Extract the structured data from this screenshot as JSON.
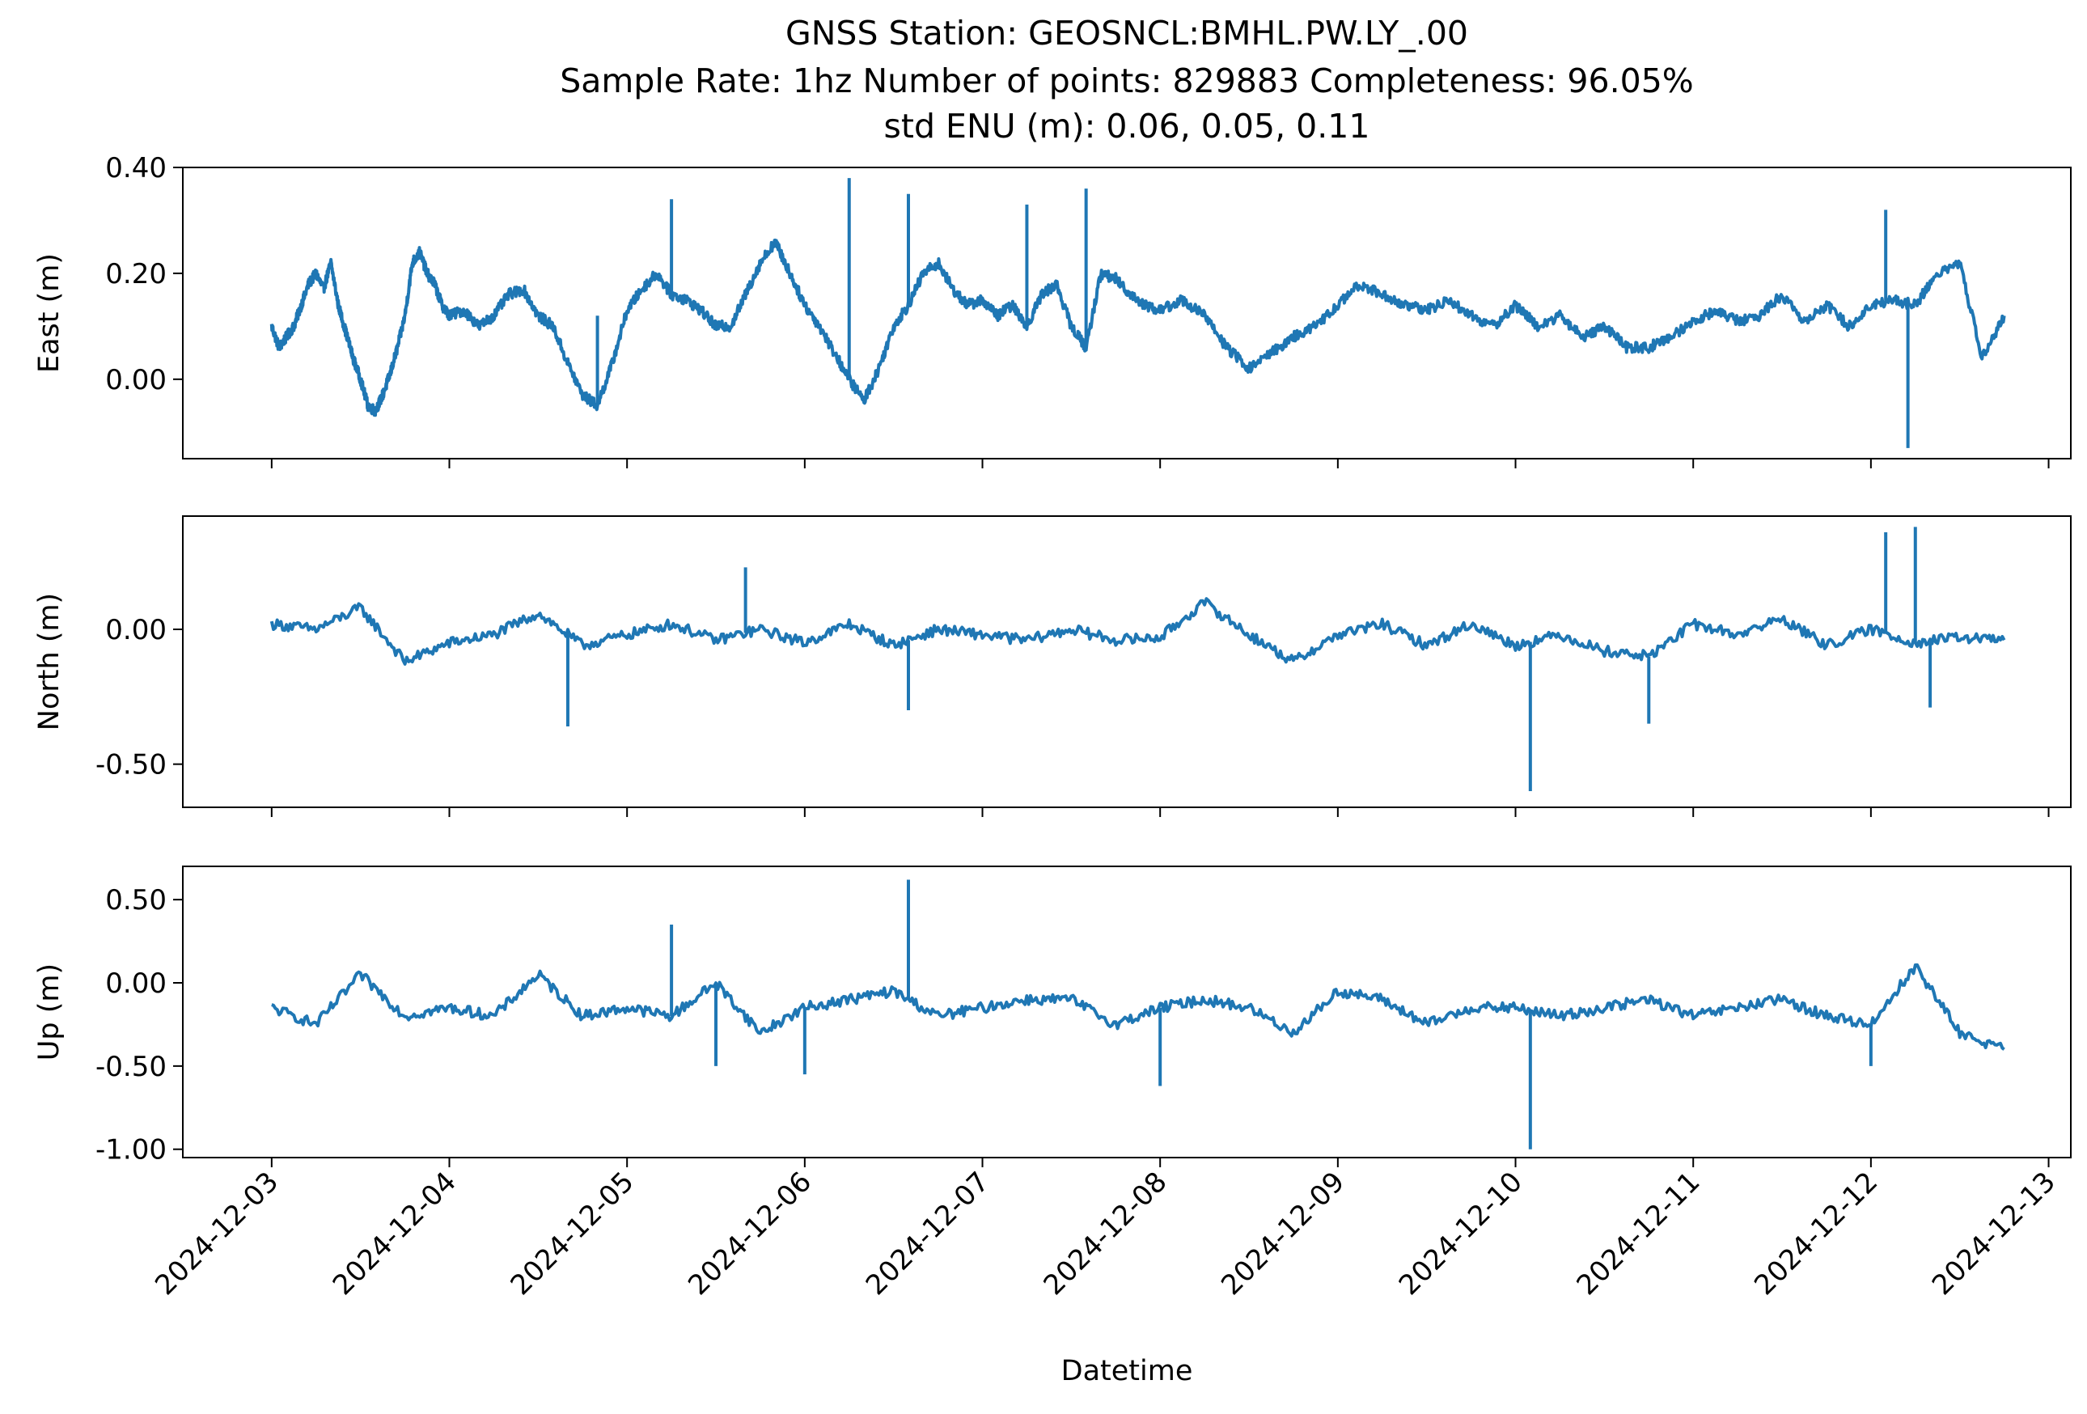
{
  "figure": {
    "title_lines": [
      "GNSS Station: GEOSNCL:BMHL.PW.LY_.00",
      "Sample Rate: 1hz   Number of points: 829883    Completeness:  96.05%",
      "std ENU (m):  0.06, 0.05, 0.11"
    ],
    "xlabel": "Datetime",
    "line_color": "#1f77b4"
  },
  "chart_data": [
    {
      "type": "line",
      "ylabel": "East (m)",
      "xlim": [
        "2024-12-02 12:00",
        "2024-12-13 03:00"
      ],
      "ylim": [
        -0.15,
        0.4
      ],
      "yticks": [
        0.0,
        0.2,
        0.4
      ],
      "yticklabels": [
        "0.00",
        "0.20",
        "0.40"
      ],
      "xticks": [
        "2024-12-03",
        "2024-12-04",
        "2024-12-05",
        "2024-12-06",
        "2024-12-07",
        "2024-12-08",
        "2024-12-09",
        "2024-12-10",
        "2024-12-11",
        "2024-12-12",
        "2024-12-13"
      ],
      "xticklabels_visible": false,
      "series": [
        {
          "x": [
            "2024-12-03 00:00",
            "2024-12-03 01:00",
            "2024-12-03 02:00",
            "2024-12-03 03:00",
            "2024-12-03 04:00",
            "2024-12-03 05:00",
            "2024-12-03 06:00",
            "2024-12-03 07:00",
            "2024-12-03 08:00",
            "2024-12-03 09:00",
            "2024-12-03 10:00",
            "2024-12-03 11:00",
            "2024-12-03 12:00",
            "2024-12-03 13:00",
            "2024-12-03 14:00",
            "2024-12-03 15:00",
            "2024-12-03 16:00",
            "2024-12-03 17:00",
            "2024-12-03 18:00",
            "2024-12-03 19:00",
            "2024-12-03 20:00",
            "2024-12-03 21:00",
            "2024-12-03 22:00",
            "2024-12-03 23:00",
            "2024-12-04 00:00",
            "2024-12-04 02:00",
            "2024-12-04 04:00",
            "2024-12-04 06:00",
            "2024-12-04 08:00",
            "2024-12-04 10:00",
            "2024-12-04 12:00",
            "2024-12-04 14:00",
            "2024-12-04 16:00",
            "2024-12-04 18:00",
            "2024-12-04 20:00",
            "2024-12-04 22:00",
            "2024-12-05 00:00",
            "2024-12-05 02:00",
            "2024-12-05 04:00",
            "2024-12-05 06:00",
            "2024-12-05 08:00",
            "2024-12-05 10:00",
            "2024-12-05 12:00",
            "2024-12-05 14:00",
            "2024-12-05 16:00",
            "2024-12-05 18:00",
            "2024-12-05 20:00",
            "2024-12-05 22:00",
            "2024-12-06 00:00",
            "2024-12-06 02:00",
            "2024-12-06 04:00",
            "2024-12-06 06:00",
            "2024-12-06 08:00",
            "2024-12-06 10:00",
            "2024-12-06 12:00",
            "2024-12-06 14:00",
            "2024-12-06 16:00",
            "2024-12-06 18:00",
            "2024-12-06 20:00",
            "2024-12-06 22:00",
            "2024-12-07 00:00",
            "2024-12-07 02:00",
            "2024-12-07 04:00",
            "2024-12-07 06:00",
            "2024-12-07 08:00",
            "2024-12-07 10:00",
            "2024-12-07 12:00",
            "2024-12-07 14:00",
            "2024-12-07 16:00",
            "2024-12-07 18:00",
            "2024-12-07 20:00",
            "2024-12-07 22:00",
            "2024-12-08 00:00",
            "2024-12-08 03:00",
            "2024-12-08 06:00",
            "2024-12-08 09:00",
            "2024-12-08 12:00",
            "2024-12-08 15:00",
            "2024-12-08 18:00",
            "2024-12-08 21:00",
            "2024-12-09 00:00",
            "2024-12-09 03:00",
            "2024-12-09 06:00",
            "2024-12-09 09:00",
            "2024-12-09 12:00",
            "2024-12-09 15:00",
            "2024-12-09 18:00",
            "2024-12-09 21:00",
            "2024-12-10 00:00",
            "2024-12-10 03:00",
            "2024-12-10 06:00",
            "2024-12-10 09:00",
            "2024-12-10 12:00",
            "2024-12-10 15:00",
            "2024-12-10 18:00",
            "2024-12-10 21:00",
            "2024-12-11 00:00",
            "2024-12-11 03:00",
            "2024-12-11 06:00",
            "2024-12-11 09:00",
            "2024-12-11 12:00",
            "2024-12-11 15:00",
            "2024-12-11 18:00",
            "2024-12-11 21:00",
            "2024-12-12 00:00",
            "2024-12-12 03:00",
            "2024-12-12 06:00",
            "2024-12-12 09:00",
            "2024-12-12 12:00",
            "2024-12-12 15:00",
            "2024-12-12 18:00"
          ],
          "y": [
            0.1,
            0.06,
            0.08,
            0.1,
            0.14,
            0.18,
            0.2,
            0.17,
            0.22,
            0.14,
            0.09,
            0.04,
            0.0,
            -0.05,
            -0.06,
            -0.03,
            0.01,
            0.06,
            0.12,
            0.22,
            0.24,
            0.2,
            0.18,
            0.14,
            0.12,
            0.13,
            0.1,
            0.12,
            0.16,
            0.17,
            0.12,
            0.1,
            0.03,
            -0.03,
            -0.05,
            0.03,
            0.13,
            0.17,
            0.2,
            0.16,
            0.15,
            0.13,
            0.1,
            0.1,
            0.16,
            0.22,
            0.26,
            0.2,
            0.14,
            0.1,
            0.05,
            0.0,
            -0.04,
            0.02,
            0.1,
            0.14,
            0.2,
            0.22,
            0.17,
            0.14,
            0.15,
            0.12,
            0.14,
            0.1,
            0.16,
            0.18,
            0.1,
            0.06,
            0.2,
            0.19,
            0.16,
            0.14,
            0.13,
            0.15,
            0.12,
            0.06,
            0.02,
            0.05,
            0.08,
            0.1,
            0.14,
            0.18,
            0.16,
            0.14,
            0.13,
            0.15,
            0.12,
            0.1,
            0.14,
            0.1,
            0.12,
            0.08,
            0.1,
            0.06,
            0.06,
            0.08,
            0.11,
            0.13,
            0.11,
            0.12,
            0.16,
            0.11,
            0.14,
            0.1,
            0.14,
            0.15,
            0.14,
            0.2,
            0.22,
            0.04,
            0.12
          ],
          "spikes": [
            [
              "2024-12-04 20:00",
              0.12
            ],
            [
              "2024-12-05 06:00",
              0.34
            ],
            [
              "2024-12-06 06:00",
              0.38
            ],
            [
              "2024-12-06 14:00",
              0.35
            ],
            [
              "2024-12-07 06:00",
              0.33
            ],
            [
              "2024-12-07 14:00",
              0.36
            ],
            [
              "2024-12-12 02:00",
              0.32
            ],
            [
              "2024-12-12 05:00",
              -0.13
            ]
          ]
        }
      ]
    },
    {
      "type": "line",
      "ylabel": "North (m)",
      "xlim": [
        "2024-12-02 12:00",
        "2024-12-13 03:00"
      ],
      "ylim": [
        -0.66,
        0.42
      ],
      "yticks": [
        0.0,
        -0.5
      ],
      "yticklabels": [
        "0.00",
        "-0.50"
      ],
      "xticks": [
        "2024-12-03",
        "2024-12-04",
        "2024-12-05",
        "2024-12-06",
        "2024-12-07",
        "2024-12-08",
        "2024-12-09",
        "2024-12-10",
        "2024-12-11",
        "2024-12-12",
        "2024-12-13"
      ],
      "xticklabels_visible": false,
      "series": [
        {
          "x": [
            "2024-12-03 00:00",
            "2024-12-03 06:00",
            "2024-12-03 12:00",
            "2024-12-03 18:00",
            "2024-12-04 00:00",
            "2024-12-04 06:00",
            "2024-12-04 12:00",
            "2024-12-04 18:00",
            "2024-12-05 00:00",
            "2024-12-05 06:00",
            "2024-12-05 12:00",
            "2024-12-05 18:00",
            "2024-12-06 00:00",
            "2024-12-06 06:00",
            "2024-12-06 12:00",
            "2024-12-06 18:00",
            "2024-12-07 00:00",
            "2024-12-07 06:00",
            "2024-12-07 12:00",
            "2024-12-07 18:00",
            "2024-12-08 00:00",
            "2024-12-08 06:00",
            "2024-12-08 12:00",
            "2024-12-08 18:00",
            "2024-12-09 00:00",
            "2024-12-09 06:00",
            "2024-12-09 12:00",
            "2024-12-09 18:00",
            "2024-12-10 00:00",
            "2024-12-10 06:00",
            "2024-12-10 12:00",
            "2024-12-10 18:00",
            "2024-12-11 00:00",
            "2024-12-11 06:00",
            "2024-12-11 12:00",
            "2024-12-11 18:00",
            "2024-12-12 00:00",
            "2024-12-12 06:00",
            "2024-12-12 12:00",
            "2024-12-12 18:00"
          ],
          "y": [
            0.02,
            0.0,
            0.08,
            -0.12,
            -0.05,
            -0.02,
            0.06,
            -0.06,
            -0.02,
            0.02,
            -0.04,
            0.0,
            -0.05,
            0.02,
            -0.06,
            0.0,
            -0.02,
            -0.04,
            0.0,
            -0.04,
            -0.03,
            0.1,
            -0.02,
            -0.12,
            -0.02,
            0.02,
            -0.06,
            0.02,
            -0.06,
            -0.02,
            -0.08,
            -0.1,
            0.02,
            -0.02,
            0.04,
            -0.06,
            0.0,
            -0.05,
            -0.03,
            -0.04
          ],
          "spikes": [
            [
              "2024-12-04 16:00",
              -0.36
            ],
            [
              "2024-12-05 16:00",
              0.23
            ],
            [
              "2024-12-06 14:00",
              -0.3
            ],
            [
              "2024-12-10 02:00",
              -0.6
            ],
            [
              "2024-12-10 18:00",
              -0.35
            ],
            [
              "2024-12-12 02:00",
              0.36
            ],
            [
              "2024-12-12 06:00",
              0.38
            ],
            [
              "2024-12-12 08:00",
              -0.29
            ]
          ]
        }
      ]
    },
    {
      "type": "line",
      "ylabel": "Up (m)",
      "xlim": [
        "2024-12-02 12:00",
        "2024-12-13 03:00"
      ],
      "ylim": [
        -1.05,
        0.7
      ],
      "yticks": [
        0.5,
        0.0,
        -0.5,
        -1.0
      ],
      "yticklabels": [
        "0.50",
        "0.00",
        "-0.50",
        "-1.00"
      ],
      "xticks": [
        "2024-12-03",
        "2024-12-04",
        "2024-12-05",
        "2024-12-06",
        "2024-12-07",
        "2024-12-08",
        "2024-12-09",
        "2024-12-10",
        "2024-12-11",
        "2024-12-12",
        "2024-12-13"
      ],
      "xticklabels": [
        "2024-12-03",
        "2024-12-04",
        "2024-12-05",
        "2024-12-06",
        "2024-12-07",
        "2024-12-08",
        "2024-12-09",
        "2024-12-10",
        "2024-12-11",
        "2024-12-12",
        "2024-12-13"
      ],
      "series": [
        {
          "x": [
            "2024-12-03 00:00",
            "2024-12-03 06:00",
            "2024-12-03 12:00",
            "2024-12-03 18:00",
            "2024-12-04 00:00",
            "2024-12-04 06:00",
            "2024-12-04 12:00",
            "2024-12-04 18:00",
            "2024-12-05 00:00",
            "2024-12-05 06:00",
            "2024-12-05 12:00",
            "2024-12-05 18:00",
            "2024-12-06 00:00",
            "2024-12-06 06:00",
            "2024-12-06 12:00",
            "2024-12-06 18:00",
            "2024-12-07 00:00",
            "2024-12-07 06:00",
            "2024-12-07 12:00",
            "2024-12-07 18:00",
            "2024-12-08 00:00",
            "2024-12-08 06:00",
            "2024-12-08 12:00",
            "2024-12-08 18:00",
            "2024-12-09 00:00",
            "2024-12-09 06:00",
            "2024-12-09 12:00",
            "2024-12-09 18:00",
            "2024-12-10 00:00",
            "2024-12-10 06:00",
            "2024-12-10 12:00",
            "2024-12-10 18:00",
            "2024-12-11 00:00",
            "2024-12-11 06:00",
            "2024-12-11 12:00",
            "2024-12-11 18:00",
            "2024-12-12 00:00",
            "2024-12-12 06:00",
            "2024-12-12 12:00",
            "2024-12-12 18:00"
          ],
          "y": [
            -0.15,
            -0.25,
            0.05,
            -0.2,
            -0.15,
            -0.2,
            0.05,
            -0.2,
            -0.15,
            -0.2,
            0.0,
            -0.3,
            -0.15,
            -0.1,
            -0.05,
            -0.2,
            -0.15,
            -0.1,
            -0.1,
            -0.25,
            -0.15,
            -0.1,
            -0.15,
            -0.3,
            -0.05,
            -0.1,
            -0.25,
            -0.15,
            -0.15,
            -0.2,
            -0.15,
            -0.1,
            -0.2,
            -0.15,
            -0.1,
            -0.2,
            -0.25,
            0.1,
            -0.3,
            -0.4
          ],
          "spikes": [
            [
              "2024-12-05 06:00",
              0.35
            ],
            [
              "2024-12-06 14:00",
              0.62
            ],
            [
              "2024-12-08 00:00",
              -0.62
            ],
            [
              "2024-12-10 02:00",
              -1.0
            ],
            [
              "2024-12-05 12:00",
              -0.5
            ],
            [
              "2024-12-06 00:00",
              -0.55
            ],
            [
              "2024-12-12 00:00",
              -0.5
            ]
          ]
        }
      ]
    }
  ]
}
